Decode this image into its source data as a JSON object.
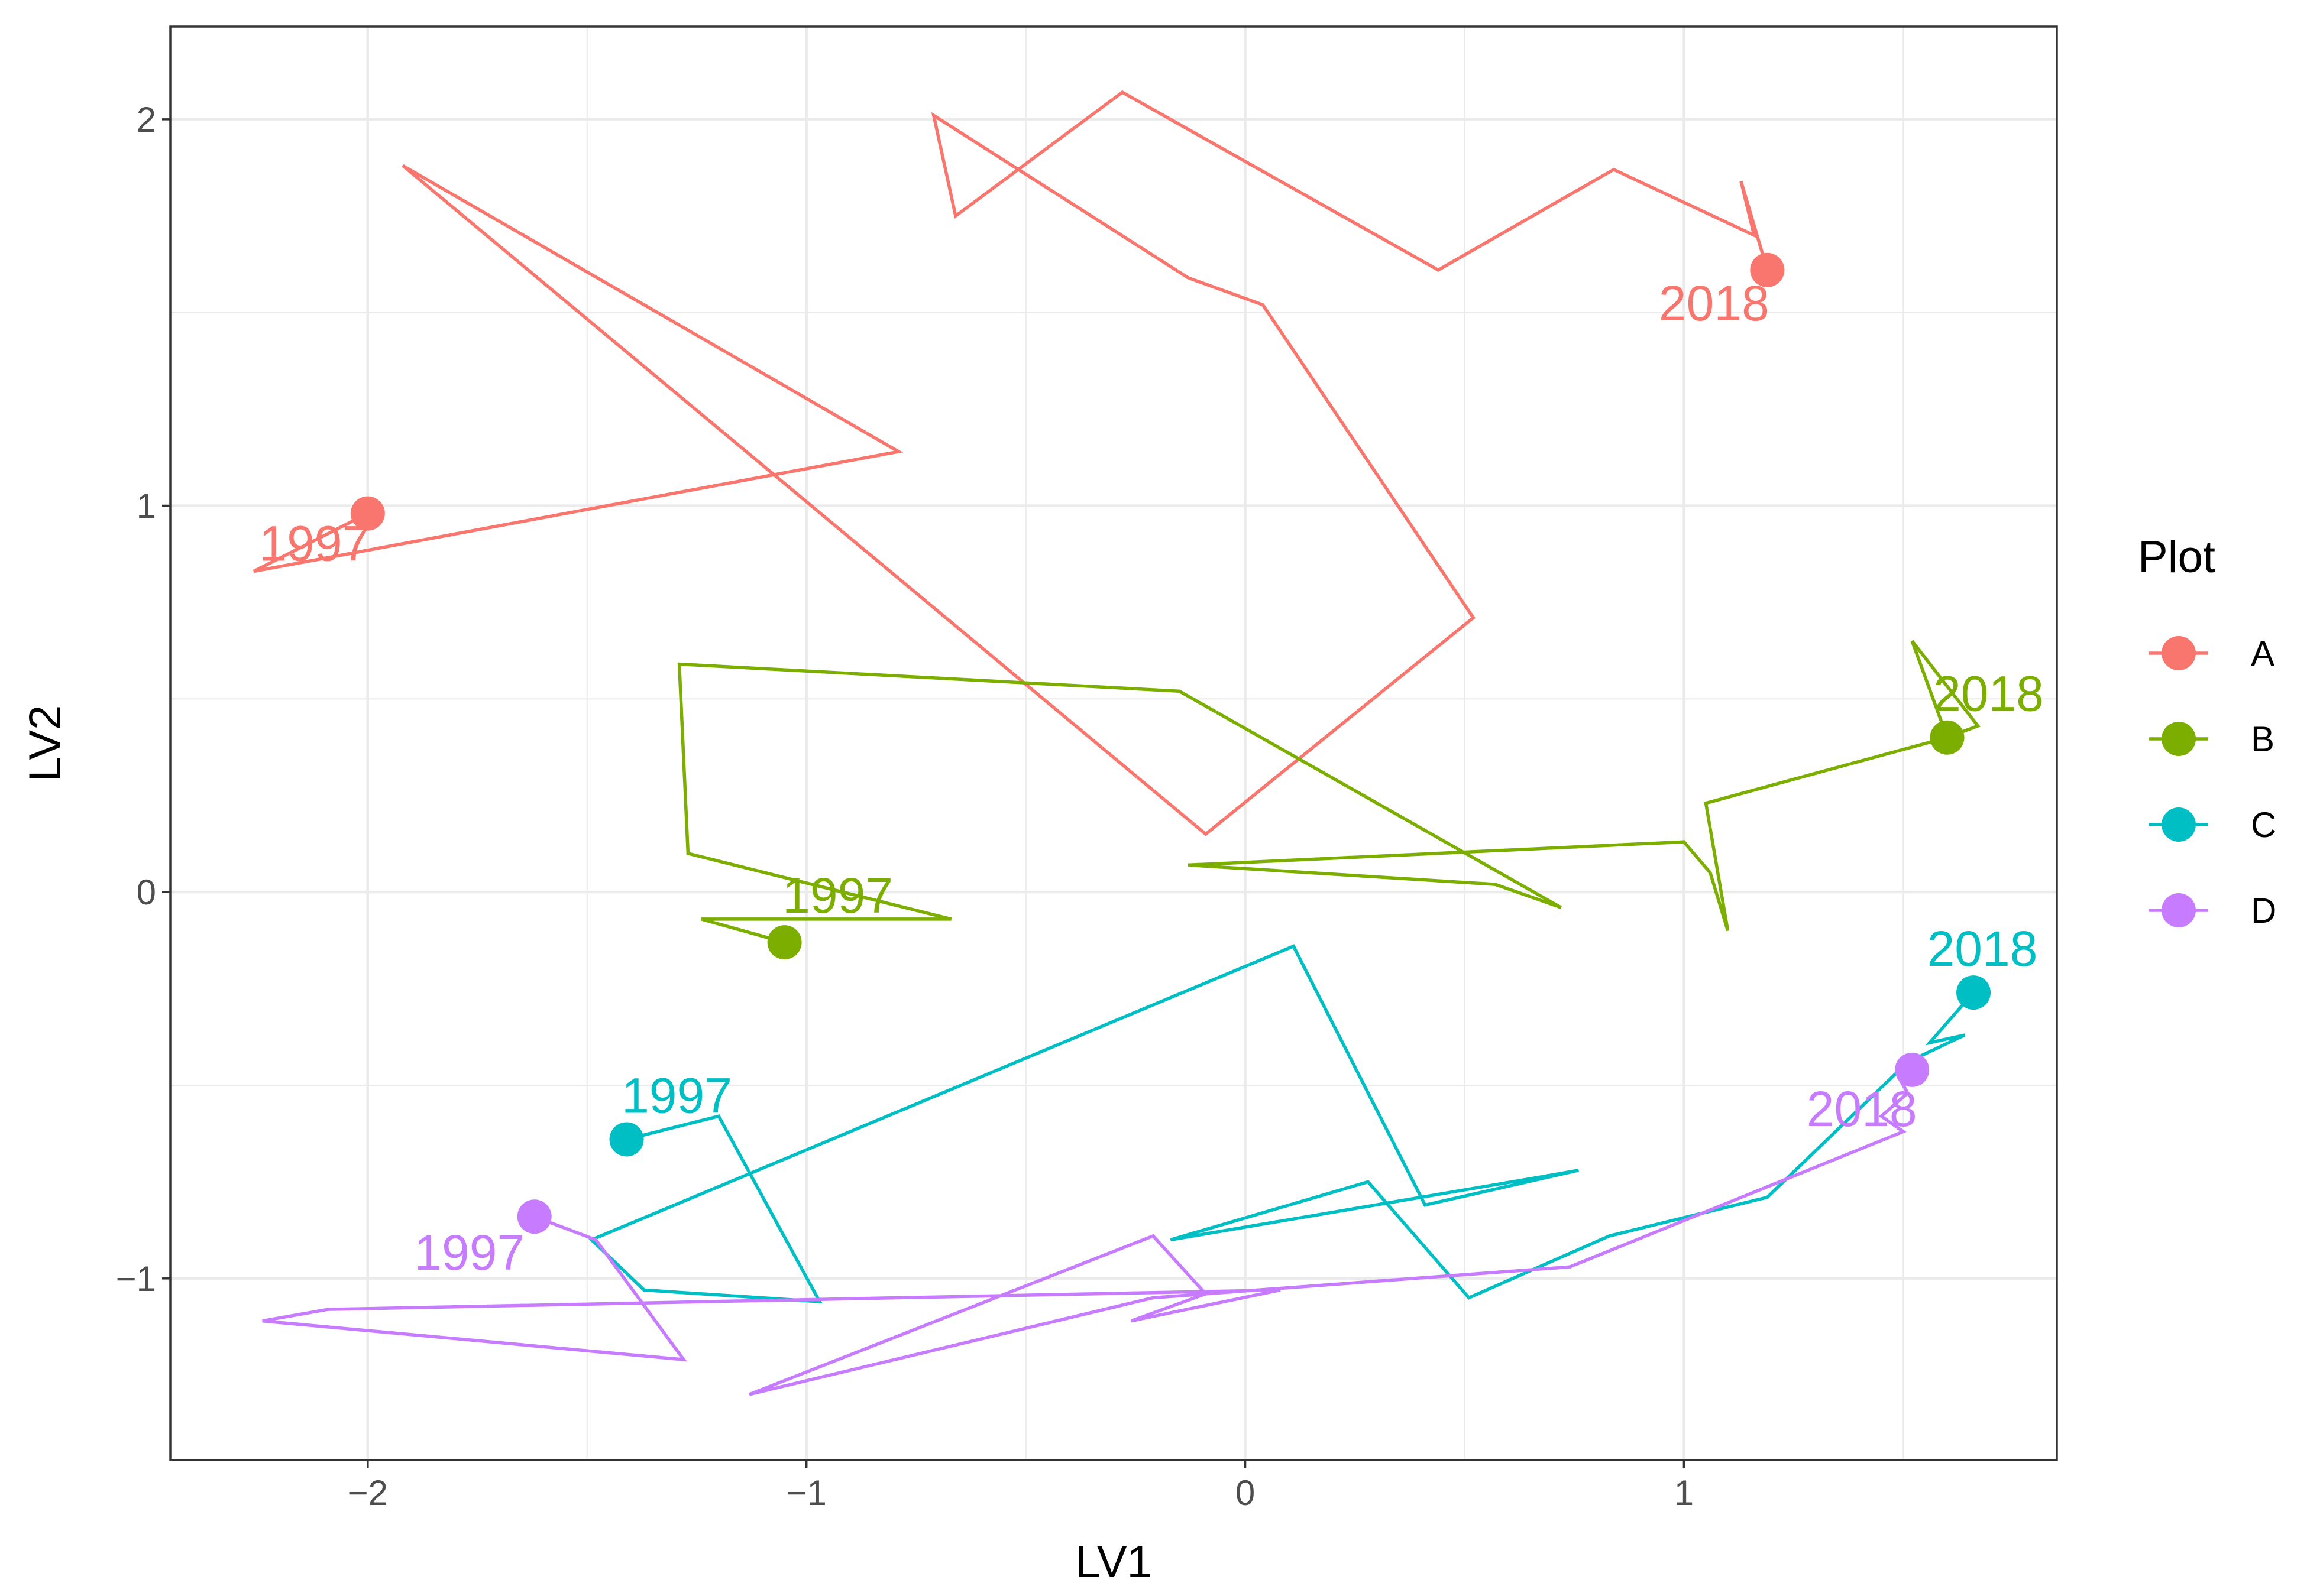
{
  "chart_data": {
    "type": "line",
    "xlabel": "LV1",
    "ylabel": "LV2",
    "xlim": [
      -2.45,
      1.85
    ],
    "ylim": [
      -1.47,
      2.24
    ],
    "x_ticks": [
      -2,
      -1,
      0,
      1
    ],
    "x_tick_labels": [
      "−2",
      "−1",
      "0",
      "1"
    ],
    "y_ticks": [
      -1,
      0,
      1,
      2
    ],
    "y_tick_labels": [
      "−1",
      "0",
      "1",
      "2"
    ],
    "grid": true,
    "legend": {
      "title": "Plot",
      "position": "right"
    },
    "series": [
      {
        "name": "A",
        "color": "#F8766D",
        "start_label": "1997",
        "end_label": "2018",
        "x": [
          -2.0,
          -2.26,
          -0.79,
          -1.92,
          -0.09,
          0.52,
          0.04,
          -0.13,
          -0.71,
          -0.66,
          -0.28,
          0.44,
          0.84,
          1.16,
          1.13,
          1.19
        ],
        "y": [
          0.98,
          0.83,
          1.14,
          1.88,
          0.15,
          0.71,
          1.52,
          1.59,
          2.01,
          1.75,
          2.07,
          1.61,
          1.87,
          1.7,
          1.84,
          1.61
        ]
      },
      {
        "name": "B",
        "color": "#7CAE00",
        "start_label": "1997",
        "end_label": "2018",
        "x": [
          -1.05,
          -1.24,
          -0.67,
          -1.27,
          -1.29,
          -0.15,
          0.72,
          0.57,
          -0.13,
          1.0,
          1.06,
          1.1,
          1.05,
          1.6,
          1.52,
          1.67,
          1.6
        ],
        "y": [
          -0.13,
          -0.07,
          -0.07,
          0.1,
          0.59,
          0.52,
          -0.04,
          0.02,
          0.07,
          0.13,
          0.05,
          -0.1,
          0.23,
          0.4,
          0.65,
          0.43,
          0.4
        ]
      },
      {
        "name": "C",
        "color": "#00BFC4",
        "start_label": "1997",
        "end_label": "2018",
        "x": [
          -1.41,
          -1.2,
          -0.97,
          -1.37,
          -1.49,
          0.11,
          0.41,
          0.76,
          0.66,
          -0.17,
          0.28,
          0.51,
          0.83,
          1.19,
          1.51,
          1.64,
          1.56,
          1.66
        ],
        "y": [
          -0.64,
          -0.58,
          -1.06,
          -1.03,
          -0.9,
          -0.14,
          -0.81,
          -0.72,
          -0.74,
          -0.9,
          -0.75,
          -1.05,
          -0.89,
          -0.79,
          -0.44,
          -0.37,
          -0.39,
          -0.26
        ]
      },
      {
        "name": "D",
        "color": "#C77CFF",
        "start_label": "1997",
        "end_label": "2018",
        "x": [
          -1.62,
          -1.48,
          -1.28,
          -2.24,
          -2.09,
          0.08,
          -0.26,
          -0.09,
          -0.21,
          -1.13,
          -0.21,
          0.74,
          1.5,
          1.45,
          1.51,
          1.49,
          1.52
        ],
        "y": [
          -0.84,
          -0.9,
          -1.21,
          -1.11,
          -1.08,
          -1.03,
          -1.11,
          -1.04,
          -0.89,
          -1.3,
          -1.05,
          -0.97,
          -0.62,
          -0.58,
          -0.52,
          -0.48,
          -0.46
        ]
      }
    ]
  }
}
